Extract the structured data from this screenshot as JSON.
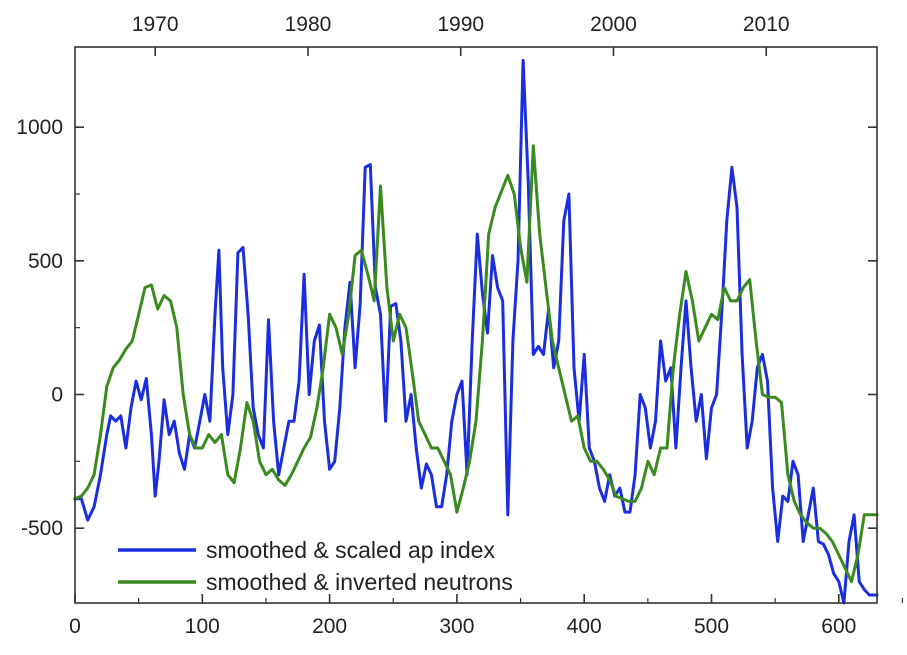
{
  "chart_data": {
    "type": "line",
    "title": "",
    "xlabel": "",
    "ylabel": "",
    "xlim": [
      0,
      630
    ],
    "ylim": [
      -780,
      1300
    ],
    "xticks": [
      0,
      100,
      200,
      300,
      400,
      500,
      600
    ],
    "yticks": [
      -500,
      0,
      500,
      1000
    ],
    "top_axis_ticks": [
      {
        "label": "1970",
        "at": 63
      },
      {
        "label": "1980",
        "at": 183
      },
      {
        "label": "1990",
        "at": 303
      },
      {
        "label": "2000",
        "at": 423
      },
      {
        "label": "2010",
        "at": 543
      }
    ],
    "grid": false,
    "legend_position": "bottom-left",
    "colors": {
      "ap": "#1a2ee0",
      "neutrons": "#3b8a1f"
    },
    "series": [
      {
        "name": "smoothed & scaled ap index",
        "color": "#1a2ee0",
        "x": [
          0,
          5,
          10,
          15,
          20,
          25,
          28,
          32,
          36,
          40,
          44,
          48,
          52,
          56,
          60,
          63,
          66,
          70,
          74,
          78,
          82,
          86,
          90,
          94,
          98,
          102,
          106,
          110,
          113,
          116,
          120,
          124,
          128,
          132,
          136,
          140,
          144,
          148,
          152,
          156,
          160,
          164,
          168,
          172,
          176,
          180,
          184,
          188,
          192,
          196,
          200,
          204,
          208,
          212,
          216,
          220,
          224,
          228,
          232,
          236,
          240,
          244,
          248,
          252,
          256,
          260,
          264,
          268,
          272,
          276,
          280,
          284,
          288,
          292,
          296,
          300,
          304,
          308,
          312,
          316,
          320,
          324,
          328,
          332,
          336,
          340,
          344,
          348,
          352,
          356,
          360,
          364,
          368,
          372,
          376,
          380,
          384,
          388,
          392,
          396,
          400,
          404,
          408,
          412,
          416,
          420,
          424,
          428,
          432,
          436,
          440,
          444,
          448,
          452,
          456,
          460,
          464,
          468,
          472,
          476,
          480,
          484,
          488,
          492,
          496,
          500,
          504,
          508,
          512,
          516,
          520,
          524,
          528,
          532,
          536,
          540,
          544,
          548,
          552,
          556,
          560,
          564,
          568,
          572,
          576,
          580,
          584,
          588,
          592,
          596,
          600,
          604,
          608,
          612,
          616,
          620,
          624,
          630
        ],
        "values": [
          -390,
          -390,
          -470,
          -420,
          -300,
          -150,
          -80,
          -100,
          -80,
          -200,
          -50,
          50,
          -20,
          60,
          -150,
          -380,
          -250,
          -20,
          -150,
          -100,
          -220,
          -280,
          -150,
          -200,
          -100,
          0,
          -100,
          300,
          540,
          100,
          -150,
          0,
          530,
          550,
          300,
          -50,
          -150,
          -200,
          280,
          -100,
          -300,
          -200,
          -100,
          -100,
          50,
          450,
          0,
          200,
          260,
          -100,
          -280,
          -250,
          -50,
          250,
          420,
          100,
          340,
          850,
          860,
          400,
          300,
          -100,
          330,
          340,
          200,
          -100,
          0,
          -200,
          -350,
          -260,
          -300,
          -420,
          -420,
          -300,
          -100,
          0,
          50,
          -300,
          200,
          600,
          380,
          230,
          520,
          400,
          350,
          -450,
          200,
          500,
          1250,
          800,
          150,
          180,
          150,
          320,
          100,
          200,
          650,
          750,
          100,
          -100,
          150,
          -200,
          -250,
          -350,
          -400,
          -300,
          -380,
          -350,
          -440,
          -440,
          -300,
          0,
          -50,
          -200,
          -100,
          200,
          50,
          100,
          -200,
          100,
          350,
          100,
          -100,
          0,
          -240,
          -50,
          0,
          300,
          650,
          850,
          700,
          150,
          -200,
          -100,
          100,
          150,
          50,
          -350,
          -550,
          -380,
          -400,
          -250,
          -300,
          -550,
          -450,
          -350,
          -550,
          -560,
          -600,
          -670,
          -700,
          -780,
          -550,
          -450,
          -700,
          -730,
          -750,
          -750
        ]
      },
      {
        "name": "smoothed & inverted neutrons",
        "color": "#3b8a1f",
        "x": [
          0,
          5,
          10,
          15,
          20,
          25,
          30,
          35,
          40,
          45,
          50,
          55,
          60,
          65,
          70,
          75,
          80,
          85,
          90,
          95,
          100,
          105,
          110,
          115,
          120,
          125,
          130,
          135,
          140,
          145,
          150,
          155,
          160,
          165,
          170,
          175,
          180,
          185,
          190,
          195,
          200,
          205,
          210,
          215,
          220,
          225,
          230,
          235,
          240,
          245,
          250,
          255,
          260,
          265,
          270,
          275,
          280,
          285,
          290,
          295,
          300,
          305,
          310,
          315,
          320,
          325,
          330,
          335,
          340,
          345,
          350,
          355,
          360,
          365,
          370,
          375,
          380,
          385,
          390,
          395,
          400,
          405,
          410,
          415,
          420,
          425,
          430,
          435,
          440,
          445,
          450,
          455,
          460,
          465,
          470,
          475,
          480,
          485,
          490,
          495,
          500,
          505,
          510,
          515,
          520,
          525,
          530,
          535,
          540,
          545,
          550,
          555,
          560,
          565,
          570,
          575,
          580,
          585,
          590,
          595,
          600,
          605,
          610,
          615,
          620,
          625,
          630
        ],
        "values": [
          -390,
          -380,
          -350,
          -300,
          -150,
          30,
          100,
          130,
          170,
          200,
          300,
          400,
          410,
          320,
          370,
          350,
          250,
          0,
          -150,
          -200,
          -200,
          -150,
          -180,
          -150,
          -300,
          -330,
          -200,
          -30,
          -100,
          -250,
          -300,
          -280,
          -320,
          -340,
          -300,
          -250,
          -200,
          -160,
          -50,
          100,
          300,
          250,
          150,
          300,
          520,
          540,
          450,
          350,
          780,
          400,
          200,
          300,
          250,
          80,
          -100,
          -150,
          -200,
          -200,
          -250,
          -300,
          -440,
          -350,
          -250,
          -100,
          200,
          600,
          700,
          760,
          820,
          750,
          550,
          420,
          930,
          600,
          400,
          200,
          100,
          0,
          -100,
          -80,
          -200,
          -250,
          -250,
          -280,
          -320,
          -380,
          -390,
          -400,
          -400,
          -350,
          -250,
          -300,
          -200,
          -200,
          100,
          300,
          460,
          350,
          200,
          250,
          300,
          280,
          400,
          350,
          350,
          400,
          430,
          200,
          0,
          -10,
          -10,
          -30,
          -300,
          -400,
          -450,
          -480,
          -500,
          -500,
          -520,
          -550,
          -600,
          -650,
          -700,
          -600,
          -450,
          -450,
          -450
        ]
      }
    ]
  }
}
